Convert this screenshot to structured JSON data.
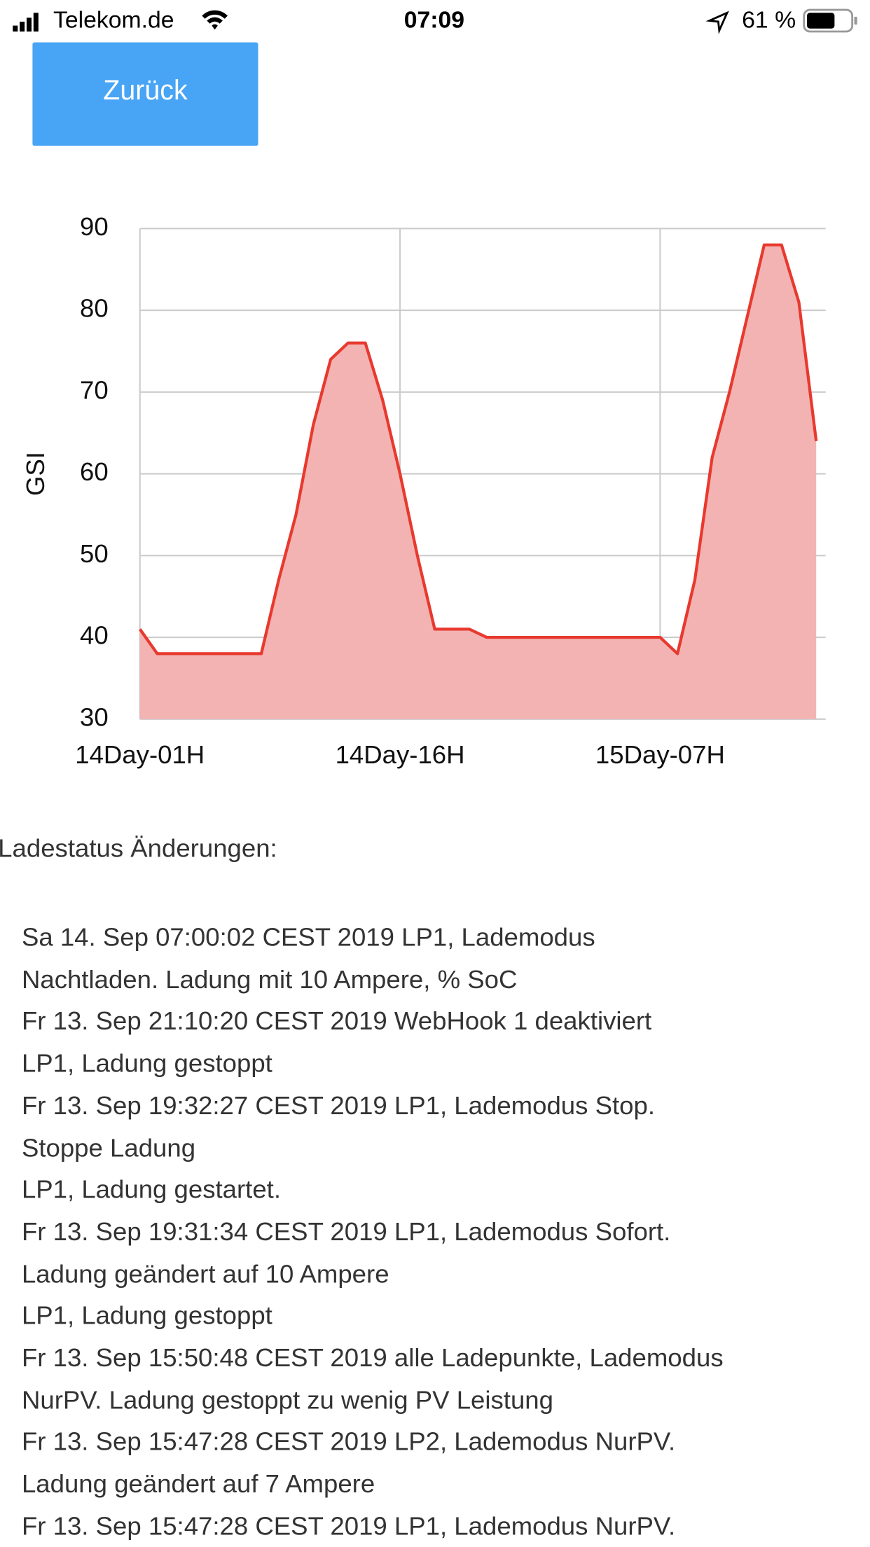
{
  "status_bar": {
    "carrier": "Telekom.de",
    "time": "07:09",
    "battery": "61 %"
  },
  "button": "Zurück",
  "chart_data": {
    "type": "area",
    "y_label": "GSI",
    "categories": [
      "14Day-01H",
      null,
      null,
      null,
      null,
      null,
      null,
      null,
      null,
      null,
      null,
      null,
      null,
      null,
      null,
      "14Day-16H",
      null,
      null,
      null,
      null,
      null,
      null,
      null,
      null,
      null,
      null,
      null,
      null,
      null,
      null,
      "15Day-07H",
      null,
      null,
      null,
      null,
      null,
      null,
      null,
      null,
      null
    ],
    "series": [
      {
        "color": "#e8392e",
        "fill": "#f4b3b3",
        "values": [
          41,
          38,
          38,
          38,
          38,
          38,
          38,
          38,
          47,
          55,
          66,
          74,
          76,
          76,
          69,
          60,
          50,
          41,
          41,
          41,
          40,
          40,
          40,
          40,
          40,
          40,
          40,
          40,
          40,
          40,
          40,
          38,
          47,
          62,
          70,
          79,
          88,
          88,
          81,
          64
        ]
      }
    ],
    "ylim": [
      30,
      90
    ],
    "yticks": [
      30,
      40,
      50,
      60,
      70,
      80,
      90
    ],
    "grid": true
  },
  "heading": "Ladestatus Änderungen:",
  "log": [
    "Sa 14. Sep 07:00:02 CEST 2019 LP1, Lademodus",
    "Nachtladen. Ladung mit 10 Ampere, % SoC",
    "Fr 13. Sep 21:10:20 CEST 2019 WebHook 1 deaktiviert",
    "LP1, Ladung gestoppt",
    "Fr 13. Sep 19:32:27 CEST 2019 LP1, Lademodus Stop.",
    "Stoppe Ladung",
    "LP1, Ladung gestartet.",
    "Fr 13. Sep 19:31:34 CEST 2019 LP1, Lademodus Sofort.",
    "Ladung geändert auf 10 Ampere",
    "LP1, Ladung gestoppt",
    "Fr 13. Sep 15:50:48 CEST 2019 alle Ladepunkte, Lademodus",
    "NurPV. Ladung gestoppt zu wenig PV Leistung",
    "Fr 13. Sep 15:47:28 CEST 2019 LP2, Lademodus NurPV.",
    "Ladung geändert auf 7 Ampere",
    "Fr 13. Sep 15:47:28 CEST 2019 LP1, Lademodus NurPV."
  ]
}
